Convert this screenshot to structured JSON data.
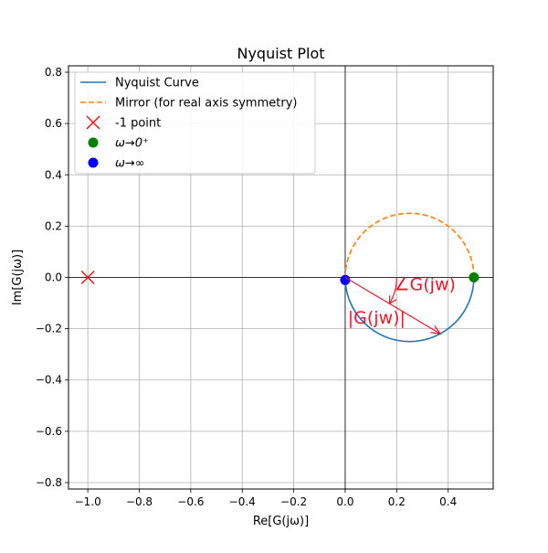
{
  "chart_data": {
    "type": "line",
    "title": "Nyquist Plot",
    "xlabel": "Re[G(jω)]",
    "ylabel": "Im[G(jω)]",
    "xlim": [
      -1.075,
      0.575
    ],
    "ylim": [
      -0.825,
      0.825
    ],
    "xticks": [
      -1.0,
      -0.8,
      -0.6,
      -0.4,
      -0.2,
      0.0,
      0.2,
      0.4
    ],
    "xtick_labels": [
      "−1.0",
      "−0.8",
      "−0.6",
      "−0.4",
      "−0.2",
      "0.0",
      "0.2",
      "0.4"
    ],
    "yticks": [
      -0.8,
      -0.6,
      -0.4,
      -0.2,
      0.0,
      0.2,
      0.4,
      0.6,
      0.8
    ],
    "ytick_labels": [
      "−0.8",
      "−0.6",
      "−0.4",
      "−0.2",
      "0.0",
      "0.2",
      "0.4",
      "0.6",
      "0.8"
    ],
    "grid": true,
    "legend_position": "top-left",
    "series": [
      {
        "name": "Nyquist Curve",
        "kind": "line",
        "style": "solid",
        "color": "#1f77b4",
        "shape": "circle",
        "center": [
          0.25,
          0.0
        ],
        "radius": 0.25,
        "half": "lower",
        "x": [
          0.5,
          0.483,
          0.4665,
          0.433,
          0.375,
          0.3147,
          0.25,
          0.1853,
          0.125,
          0.067,
          0.0335,
          0.017,
          0.0
        ],
        "y": [
          0.0,
          -0.0915,
          -0.125,
          -0.1768,
          -0.2165,
          -0.2415,
          -0.25,
          -0.2415,
          -0.2165,
          -0.1768,
          -0.125,
          -0.0915,
          0.0
        ]
      },
      {
        "name": "Mirror (for real axis symmetry)",
        "kind": "line",
        "style": "dashed",
        "color": "#ff7f0e",
        "shape": "circle",
        "center": [
          0.25,
          0.0
        ],
        "radius": 0.25,
        "half": "upper",
        "x": [
          0.5,
          0.483,
          0.4665,
          0.433,
          0.375,
          0.3147,
          0.25,
          0.1853,
          0.125,
          0.067,
          0.0335,
          0.017,
          0.0
        ],
        "y": [
          0.0,
          0.0915,
          0.125,
          0.1768,
          0.2165,
          0.2415,
          0.25,
          0.2415,
          0.2165,
          0.1768,
          0.125,
          0.0915,
          0.0
        ]
      },
      {
        "name": "-1 point",
        "kind": "marker",
        "marker": "x",
        "color": "#ff0000",
        "x": [
          -1.0
        ],
        "y": [
          0.0
        ]
      },
      {
        "name": "ω→0⁺",
        "kind": "marker",
        "marker": "circle",
        "color": "#008000",
        "x": [
          0.5
        ],
        "y": [
          0.0
        ]
      },
      {
        "name": "ω→∞",
        "kind": "marker",
        "marker": "circle",
        "color": "#0000ff",
        "x": [
          0.0
        ],
        "y": [
          -0.01
        ]
      }
    ],
    "reference_lines": {
      "color": "#000000",
      "x_zero": true,
      "y_zero": true
    },
    "annotations": [
      {
        "kind": "arrow",
        "color": "#e8192c",
        "from": [
          0.0,
          0.0
        ],
        "to": [
          0.37,
          -0.22
        ]
      },
      {
        "kind": "arc",
        "color": "#e8192c",
        "center": [
          0.0,
          0.0
        ],
        "radius": 0.2
      },
      {
        "kind": "text",
        "text": "∠G(jw)",
        "color": "#e8192c",
        "at": [
          0.19,
          -0.05
        ]
      },
      {
        "kind": "text",
        "text": "|G(jw)|",
        "color": "#e8192c",
        "at": [
          0.01,
          -0.18
        ]
      }
    ]
  }
}
